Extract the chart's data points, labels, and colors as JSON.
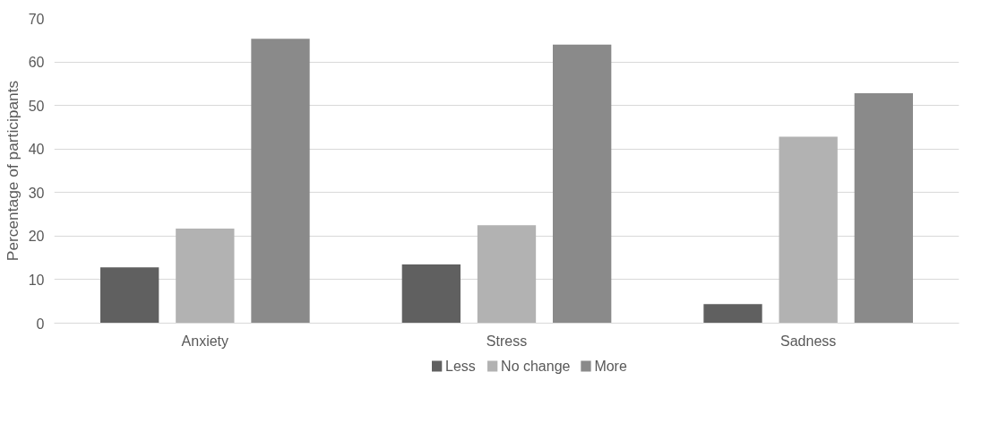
{
  "chart_data": {
    "type": "bar",
    "ylabel": "Percentage of participants",
    "categories": [
      "Anxiety",
      "Stress",
      "Sadness"
    ],
    "series": [
      {
        "name": "Less",
        "color": "#606060",
        "values": [
          12.8,
          13.5,
          4.4
        ]
      },
      {
        "name": "No change",
        "color": "#b2b2b2",
        "values": [
          21.7,
          22.5,
          42.8
        ]
      },
      {
        "name": "More",
        "color": "#8a8a8a",
        "values": [
          65.3,
          64.0,
          52.8
        ]
      }
    ],
    "ylim": [
      0,
      70
    ],
    "yticks": [
      0,
      10,
      20,
      30,
      40,
      50,
      60,
      70
    ],
    "grid": "y",
    "legend": "bottom"
  }
}
